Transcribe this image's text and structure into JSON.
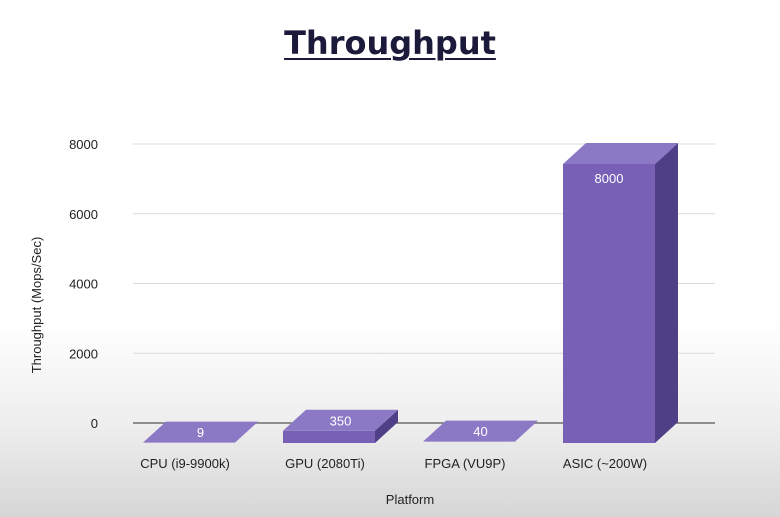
{
  "chart_data": {
    "type": "bar",
    "title": "Throughput",
    "xlabel": "Platform",
    "ylabel": "Throughput (Mops/Sec)",
    "categories": [
      "CPU (i9-9900k)",
      "GPU (2080Ti)",
      "FPGA (VU9P)",
      "ASIC (~200W)"
    ],
    "values": [
      9,
      350,
      40,
      8000
    ],
    "data_labels": [
      "9",
      "350",
      "40",
      "8000"
    ],
    "yticks": [
      0,
      2000,
      4000,
      6000,
      8000
    ],
    "ylim": [
      0,
      8000
    ],
    "grid": true,
    "style": "3d",
    "colors": {
      "front": "#7760b6",
      "top": "#8b79c6",
      "side": "#4e3f86"
    }
  }
}
